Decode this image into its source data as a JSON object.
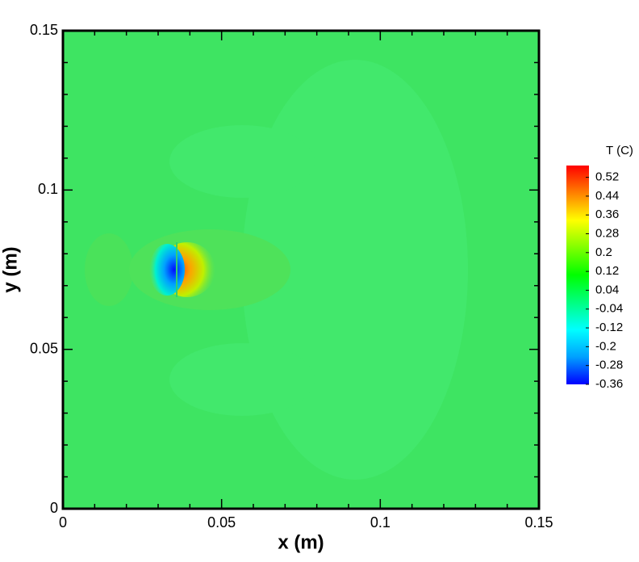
{
  "chart_data": {
    "type": "contour",
    "xlabel": "x (m)",
    "ylabel": "y (m)",
    "xlim": [
      0,
      0.15
    ],
    "ylim": [
      0,
      0.15
    ],
    "xticks": [
      0,
      0.05,
      0.1,
      0.15
    ],
    "yticks": [
      0,
      0.05,
      0.1,
      0.15
    ],
    "xminorticks": [
      0.01,
      0.02,
      0.03,
      0.04,
      0.06,
      0.07,
      0.08,
      0.09,
      0.11,
      0.12,
      0.13,
      0.14
    ],
    "yminorticks": [
      0.01,
      0.02,
      0.03,
      0.04,
      0.06,
      0.07,
      0.08,
      0.09,
      0.11,
      0.12,
      0.13,
      0.14
    ],
    "colorbar": {
      "title": "T (C)",
      "clim": [
        -0.36,
        0.57
      ],
      "levels": [
        0.52,
        0.44,
        0.36,
        0.28,
        0.2,
        0.12,
        0.04,
        -0.04,
        -0.12,
        -0.2,
        -0.28,
        -0.36
      ],
      "colors": [
        "#0000ff",
        "#00a0ff",
        "#00ffff",
        "#00ff80",
        "#00ff00",
        "#80ff00",
        "#ffff00",
        "#ff8000",
        "#ff0000"
      ]
    }
  }
}
